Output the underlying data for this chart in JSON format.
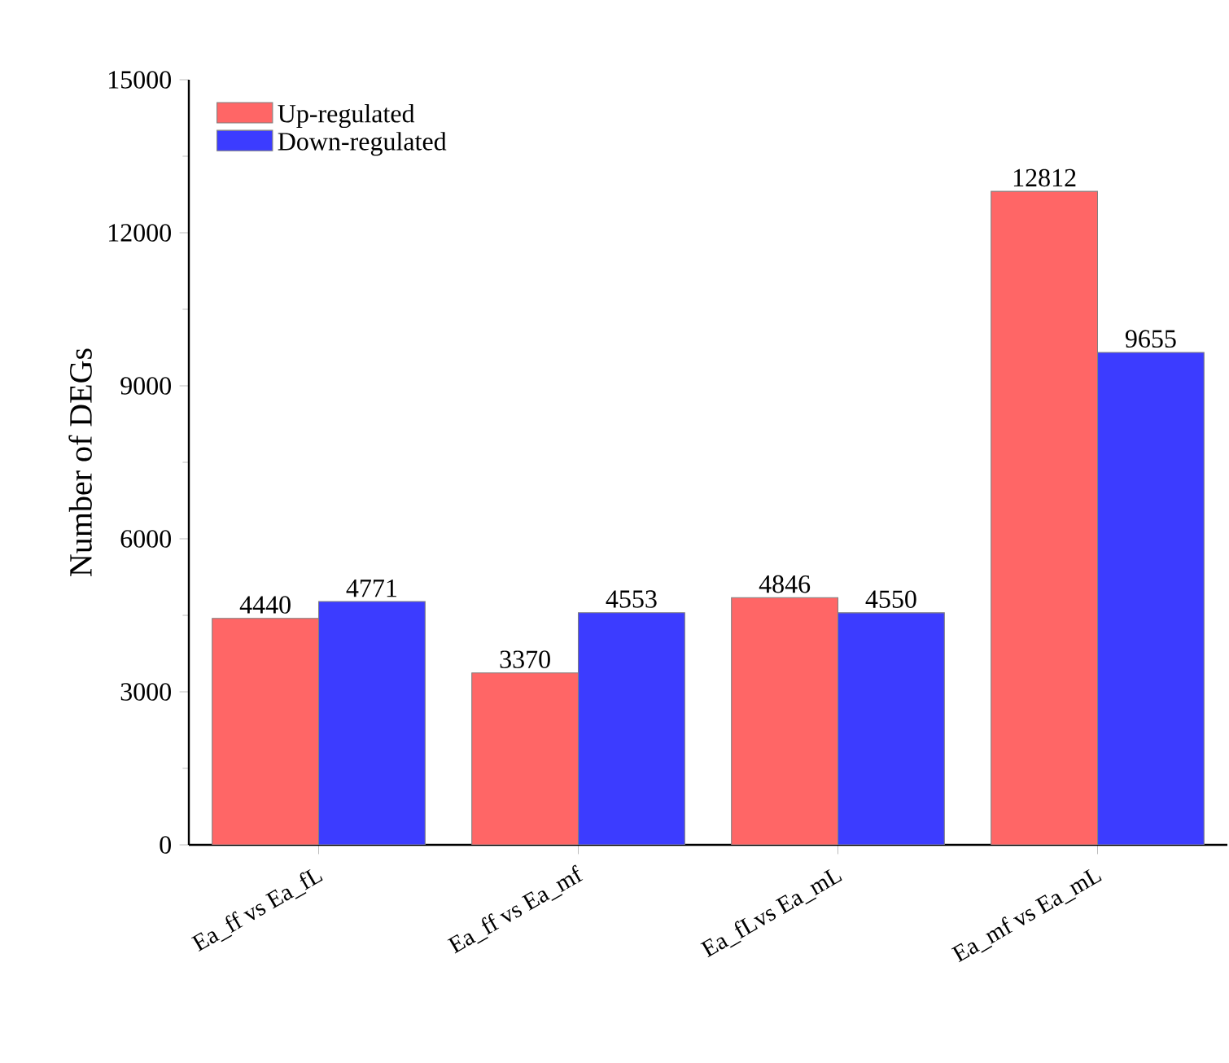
{
  "chart_data": {
    "type": "bar",
    "categories": [
      "Ea_ff vs Ea_fL",
      "Ea_ff vs Ea_mf",
      "Ea_fLvs Ea_mL",
      "Ea_mf vs Ea_mL"
    ],
    "series": [
      {
        "name": "Up-regulated",
        "color": "#ff6666",
        "values": [
          4440,
          3370,
          4846,
          12812
        ]
      },
      {
        "name": "Down-regulated",
        "color": "#3c3cff",
        "values": [
          4771,
          4553,
          4550,
          9655
        ]
      }
    ],
    "ylabel": "Number of DEGs",
    "ylim": [
      0,
      15000
    ],
    "yticks": [
      0,
      3000,
      6000,
      9000,
      12000,
      15000
    ],
    "data_labels": true,
    "legend": "top left",
    "grid": false
  }
}
